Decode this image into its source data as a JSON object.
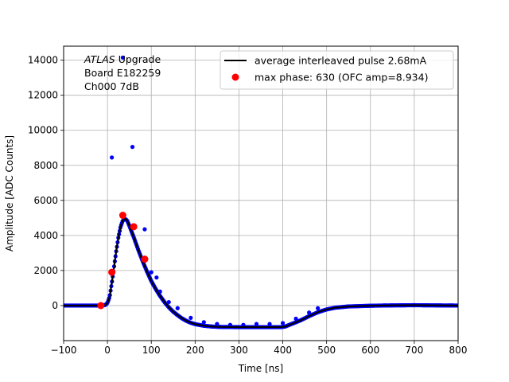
{
  "chart_data": {
    "type": "scatter",
    "xlabel": "Time [ns]",
    "ylabel": "Amplitude [ADC Counts]",
    "xlim": [
      -100,
      800
    ],
    "ylim": [
      -2000,
      14800
    ],
    "grid": true,
    "xticks": [
      -100,
      0,
      100,
      200,
      300,
      400,
      500,
      600,
      700,
      800
    ],
    "yticks": [
      0,
      2000,
      4000,
      6000,
      8000,
      10000,
      12000,
      14000
    ],
    "annotation": {
      "lines": [
        "ATLAS Upgrade",
        " Board E182259",
        " Ch000 7dB"
      ],
      "italic_word": "ATLAS"
    },
    "legend": {
      "placement": "upper-right",
      "entries": [
        {
          "label": "average interleaved pulse 2.68mA",
          "marker": "line",
          "color": "#000000"
        },
        {
          "label": "max phase: 630 (OFC amp=8.934)",
          "marker": "dot",
          "color": "#ff0000"
        }
      ]
    },
    "series": [
      {
        "name": "average interleaved pulse 2.68mA",
        "kind": "line",
        "color": "#000000",
        "points": [
          [
            -100,
            0
          ],
          [
            -20,
            0
          ],
          [
            -5,
            30
          ],
          [
            0,
            150
          ],
          [
            5,
            500
          ],
          [
            10,
            1300
          ],
          [
            15,
            2200
          ],
          [
            20,
            3100
          ],
          [
            25,
            3900
          ],
          [
            30,
            4500
          ],
          [
            35,
            4850
          ],
          [
            40,
            4950
          ],
          [
            45,
            4850
          ],
          [
            50,
            4550
          ],
          [
            60,
            3900
          ],
          [
            70,
            3200
          ],
          [
            80,
            2550
          ],
          [
            90,
            1950
          ],
          [
            100,
            1400
          ],
          [
            110,
            950
          ],
          [
            120,
            550
          ],
          [
            130,
            200
          ],
          [
            140,
            -100
          ],
          [
            150,
            -350
          ],
          [
            160,
            -550
          ],
          [
            170,
            -730
          ],
          [
            180,
            -870
          ],
          [
            190,
            -980
          ],
          [
            200,
            -1060
          ],
          [
            220,
            -1150
          ],
          [
            240,
            -1200
          ],
          [
            260,
            -1220
          ],
          [
            300,
            -1230
          ],
          [
            350,
            -1230
          ],
          [
            395,
            -1230
          ],
          [
            405,
            -1200
          ],
          [
            420,
            -1050
          ],
          [
            440,
            -850
          ],
          [
            460,
            -600
          ],
          [
            480,
            -380
          ],
          [
            500,
            -220
          ],
          [
            520,
            -120
          ],
          [
            550,
            -50
          ],
          [
            600,
            -10
          ],
          [
            650,
            10
          ],
          [
            700,
            20
          ],
          [
            750,
            10
          ],
          [
            800,
            0
          ]
        ]
      },
      {
        "name": "outliers",
        "kind": "scatter",
        "color": "#0000ff",
        "points": [
          [
            10,
            8450
          ],
          [
            35,
            14150
          ],
          [
            57,
            9050
          ],
          [
            85,
            4350
          ],
          [
            100,
            1900
          ],
          [
            112,
            1600
          ],
          [
            120,
            800
          ],
          [
            140,
            200
          ],
          [
            160,
            -150
          ],
          [
            190,
            -700
          ],
          [
            220,
            -950
          ],
          [
            250,
            -1050
          ],
          [
            280,
            -1100
          ],
          [
            310,
            -1100
          ],
          [
            340,
            -1050
          ],
          [
            370,
            -1050
          ],
          [
            400,
            -1000
          ],
          [
            430,
            -750
          ],
          [
            460,
            -400
          ],
          [
            480,
            -150
          ]
        ]
      },
      {
        "name": "max phase: 630 (OFC amp=8.934)",
        "kind": "scatter",
        "color": "#ff0000",
        "points": [
          [
            -15,
            0
          ],
          [
            10,
            1900
          ],
          [
            35,
            5150
          ],
          [
            60,
            4500
          ],
          [
            85,
            2650
          ]
        ]
      }
    ]
  }
}
